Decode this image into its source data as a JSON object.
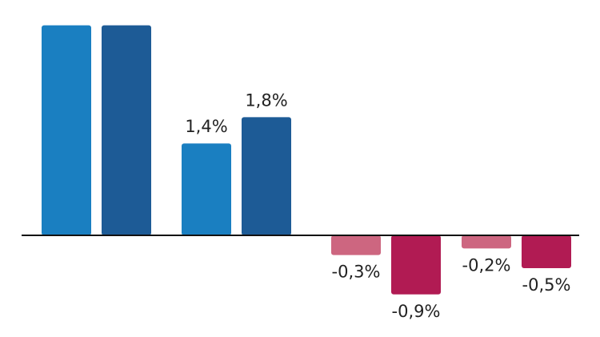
{
  "chart_data": {
    "type": "bar",
    "title": "",
    "xlabel": "",
    "ylabel": "",
    "ylim": [
      -1.1,
      3.2
    ],
    "groups": [
      {
        "bars": [
          {
            "value": 3.2,
            "label": "",
            "color": "#1a7fc1"
          },
          {
            "value": 3.2,
            "label": "",
            "color": "#1d5b96"
          }
        ]
      },
      {
        "bars": [
          {
            "value": 1.4,
            "label": "1,4%",
            "color": "#1a7fc1"
          },
          {
            "value": 1.8,
            "label": "1,8%",
            "color": "#1d5b96"
          }
        ]
      },
      {
        "bars": [
          {
            "value": -0.3,
            "label": "-0,3%",
            "color": "#cd6680"
          },
          {
            "value": -0.9,
            "label": "-0,9%",
            "color": "#b11b53"
          }
        ]
      },
      {
        "bars": [
          {
            "value": -0.2,
            "label": "-0,2%",
            "color": "#cd6680"
          },
          {
            "value": -0.5,
            "label": "-0,5%",
            "color": "#b11b53"
          }
        ]
      }
    ],
    "colors": {
      "positive_light": "#1a7fc1",
      "positive_dark": "#1d5b96",
      "negative_light": "#cd6680",
      "negative_dark": "#b11b53",
      "axis": "#111111"
    }
  }
}
